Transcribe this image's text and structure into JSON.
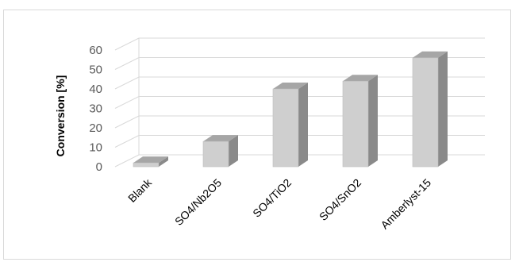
{
  "chart_data": {
    "type": "bar",
    "title": "",
    "xlabel": "",
    "ylabel": "Conversion [%]",
    "categories": [
      "Blank",
      "SO4/Nb2O5",
      "SO4/TiO2",
      "SO4/SnO2",
      "Amberlyst-15"
    ],
    "values": [
      2,
      13,
      40,
      44,
      56
    ],
    "ylim": [
      0,
      60
    ],
    "yticks": [
      "0",
      "10",
      "20",
      "30",
      "40",
      "50",
      "60"
    ],
    "grid": true,
    "legend": "none",
    "style": "3d-column",
    "colors": {
      "bar_front": "#cfcfcf",
      "bar_side": "#8a8a8a",
      "bar_top": "#a6a6a6",
      "grid": "#d9d9d9"
    }
  }
}
